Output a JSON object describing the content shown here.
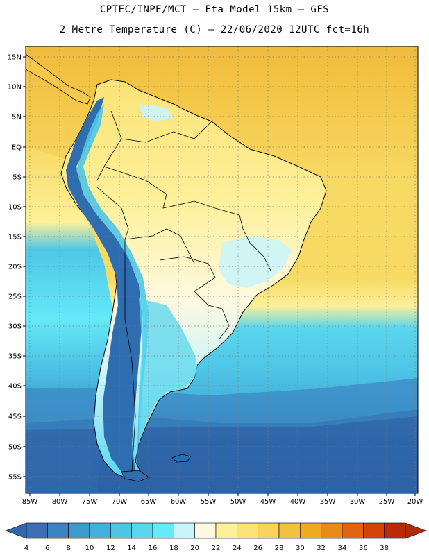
{
  "header": {
    "line1": "CPTEC/INPE/MCT –  Eta Model 15km – GFS",
    "line2": "2 Metre Temperature (C) – 22/06/2020 12UTC fct=16h"
  },
  "map": {
    "lat_labels": [
      "15N",
      "10N",
      "5N",
      "EQ",
      "5S",
      "10S",
      "15S",
      "20S",
      "25S",
      "30S",
      "35S",
      "40S",
      "45S",
      "50S",
      "55S"
    ],
    "lon_labels": [
      "85W",
      "80W",
      "75W",
      "70W",
      "65W",
      "60W",
      "55W",
      "50W",
      "45W",
      "40W",
      "35W",
      "30W",
      "25W",
      "20W"
    ],
    "lon_range": [
      -85,
      -20
    ],
    "lat_range": [
      -58,
      17
    ],
    "gridlines": true
  },
  "colorbar": {
    "labels": [
      "4",
      "6",
      "8",
      "10",
      "12",
      "14",
      "16",
      "18",
      "20",
      "22",
      "24",
      "26",
      "28",
      "30",
      "32",
      "34",
      "36",
      "38"
    ],
    "colors": [
      "#3a6fb6",
      "#3b84c2",
      "#3d9bce",
      "#44b1dc",
      "#4fc6e6",
      "#5ad6ee",
      "#64eaf8",
      "#c9f4fc",
      "#fdf9e0",
      "#fdf09a",
      "#fce376",
      "#f9d45a",
      "#f3c040",
      "#f1aa1e",
      "#ea8a18",
      "#e36410",
      "#d2440a",
      "#bb2a06"
    ],
    "low_color": "#3366aa",
    "high_color": "#b12a06"
  },
  "colors": {
    "ocean_tropical": "#f4c84a",
    "ocean_warm": "#f7da64",
    "ocean_mid": "#5ad6ee",
    "ocean_cool": "#44b1dc",
    "ocean_cold": "#2e62a6",
    "land_warm": "#fdf09a",
    "land_mild": "#fdf9e0",
    "andes": "#2e6db0",
    "border": "#000000"
  }
}
